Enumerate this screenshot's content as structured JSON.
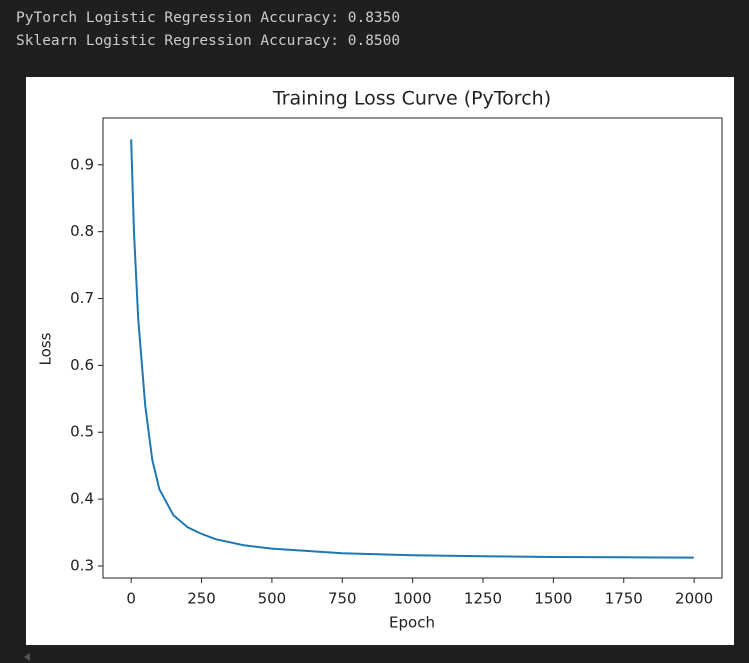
{
  "output_lines": [
    "PyTorch Logistic Regression Accuracy: 0.8350",
    "Sklearn Logistic Regression Accuracy: 0.8500"
  ],
  "chart_data": {
    "type": "line",
    "title": "Training Loss Curve (PyTorch)",
    "xlabel": "Epoch",
    "ylabel": "Loss",
    "x": [
      0,
      10,
      25,
      50,
      75,
      100,
      150,
      200,
      250,
      300,
      400,
      500,
      750,
      1000,
      1250,
      1500,
      1750,
      1999
    ],
    "values": [
      0.938,
      0.8,
      0.67,
      0.54,
      0.459,
      0.415,
      0.376,
      0.358,
      0.348,
      0.34,
      0.331,
      0.326,
      0.319,
      0.316,
      0.3145,
      0.3135,
      0.313,
      0.3125
    ],
    "color": "#1f77b4",
    "xlim": [
      -100,
      2099
    ],
    "ylim": [
      0.282,
      0.97
    ],
    "xticks": [
      0,
      250,
      500,
      750,
      1000,
      1250,
      1500,
      1750,
      2000
    ],
    "yticks": [
      0.3,
      0.4,
      0.5,
      0.6,
      0.7,
      0.8,
      0.9
    ]
  }
}
